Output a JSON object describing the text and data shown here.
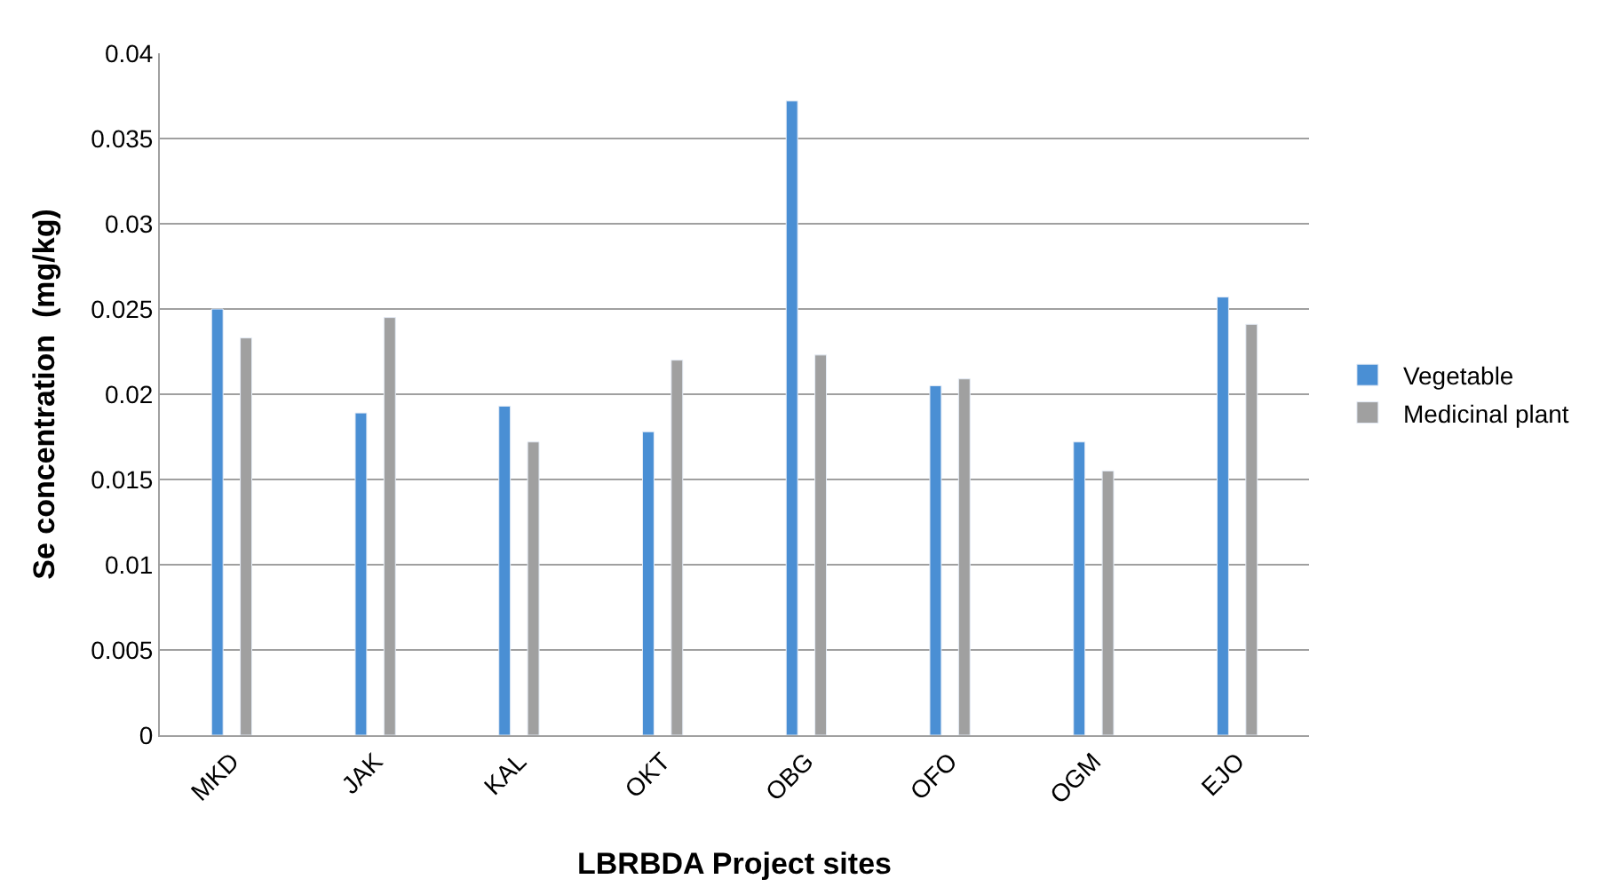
{
  "chart_data": {
    "type": "bar",
    "xlabel": "LBRBDA Project sites",
    "ylabel": "Se concentration  (mg/kg)",
    "categories": [
      "MKD",
      "JAK",
      "KAL",
      "OKT",
      "OBG",
      "OFO",
      "OGM",
      "EJO"
    ],
    "series": [
      {
        "name": "Vegetable",
        "color": "#4a8fd4",
        "values": [
          0.025,
          0.0189,
          0.0193,
          0.0178,
          0.0372,
          0.0205,
          0.0172,
          0.0257
        ]
      },
      {
        "name": "Medicinal plant",
        "color": "#a0a0a0",
        "values": [
          0.0233,
          0.0245,
          0.0172,
          0.022,
          0.0223,
          0.0209,
          0.0155,
          0.0241
        ]
      }
    ],
    "ylim": [
      0,
      0.04
    ],
    "yticks": [
      0,
      0.005,
      0.01,
      0.015,
      0.02,
      0.025,
      0.03,
      0.035,
      0.04
    ],
    "grid": "y",
    "legend": "right"
  }
}
